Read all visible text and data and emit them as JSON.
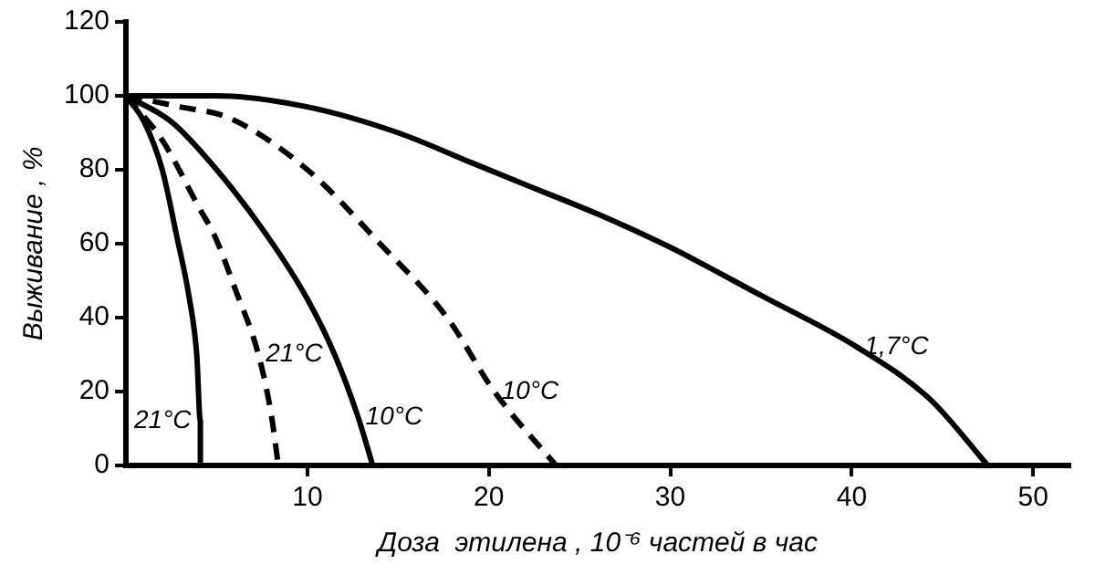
{
  "chart_data": {
    "type": "line",
    "xlabel": "Доза  этилена , 10⁻⁶ частей в час",
    "ylabel": "Выживание , %",
    "xlim": [
      0,
      52
    ],
    "xticks": [
      10,
      20,
      30,
      40,
      50
    ],
    "ylim": [
      0,
      120
    ],
    "yticks": [
      0,
      20,
      40,
      60,
      80,
      100,
      120
    ],
    "grid": false,
    "legend": false,
    "marker": "none",
    "series": [
      {
        "name": "21°C",
        "color": "#000000",
        "line_style": "solid",
        "x": [
          0,
          1,
          2,
          2.8,
          3.5,
          3.9,
          4.1,
          4.1
        ],
        "values": [
          100,
          93,
          80,
          62,
          45,
          30,
          12,
          0
        ]
      },
      {
        "name": "21°C",
        "color": "#000000",
        "line_style": "dashed",
        "x": [
          0,
          2,
          4,
          4.9,
          6,
          7.3,
          8,
          8.4
        ],
        "values": [
          100,
          88,
          70,
          62,
          48,
          30,
          14,
          0
        ]
      },
      {
        "name": "10°C",
        "color": "#000000",
        "line_style": "solid",
        "x": [
          0,
          2.5,
          5,
          7.8,
          10,
          11.5,
          12.8,
          13.6
        ],
        "values": [
          100,
          93,
          80,
          62,
          45,
          30,
          13,
          0
        ]
      },
      {
        "name": "10°C",
        "color": "#000000",
        "line_style": "dashed",
        "x": [
          0,
          3,
          5.7,
          10,
          14,
          17.7,
          20.3,
          23.7
        ],
        "values": [
          100,
          97,
          94,
          80,
          60,
          40,
          20,
          0
        ]
      },
      {
        "name": "1,7°C",
        "color": "#000000",
        "line_style": "solid",
        "x": [
          0,
          5,
          10,
          15,
          19,
          22,
          26,
          30,
          35,
          40.3,
          44.3,
          47.5
        ],
        "values": [
          100,
          100,
          97,
          90,
          82,
          76,
          68,
          59,
          46,
          32,
          18,
          0
        ]
      }
    ]
  }
}
